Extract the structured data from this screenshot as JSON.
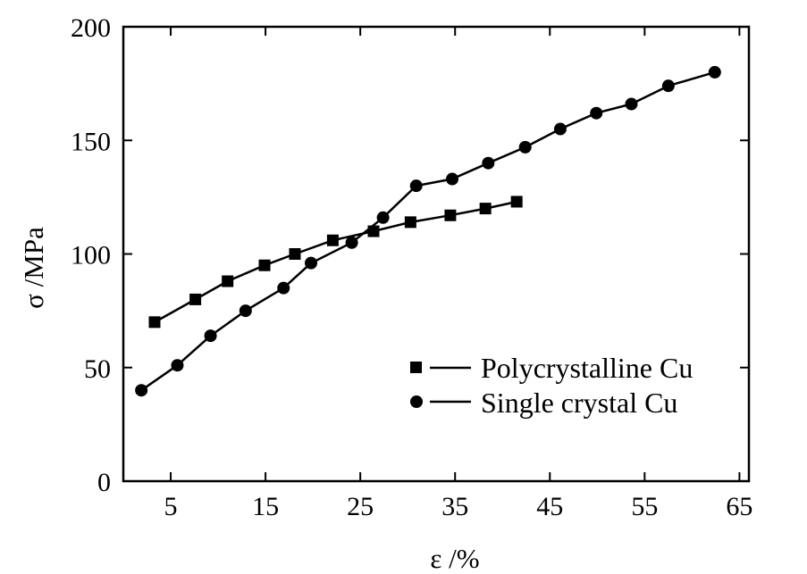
{
  "chart_data": {
    "type": "line",
    "title": "",
    "xlabel": "ε /%",
    "ylabel": "σ /MPa",
    "xlim": [
      0,
      66
    ],
    "ylim": [
      0,
      200
    ],
    "xticks": [
      5,
      15,
      25,
      35,
      45,
      55,
      65
    ],
    "yticks": [
      0,
      50,
      100,
      150,
      200
    ],
    "grid": false,
    "legend_position": "lower-right",
    "series": [
      {
        "name": "Polycrystalline Cu",
        "marker": "square",
        "color": "#000000",
        "points": [
          [
            3.3,
            70
          ],
          [
            7.6,
            80
          ],
          [
            11.0,
            88
          ],
          [
            14.9,
            95
          ],
          [
            18.1,
            100
          ],
          [
            22.1,
            106
          ],
          [
            26.4,
            110
          ],
          [
            30.3,
            114
          ],
          [
            34.5,
            117
          ],
          [
            38.2,
            120
          ],
          [
            41.5,
            123
          ]
        ]
      },
      {
        "name": "Single crystal Cu",
        "marker": "circle",
        "color": "#000000",
        "points": [
          [
            1.9,
            40
          ],
          [
            5.7,
            51
          ],
          [
            9.2,
            64
          ],
          [
            12.9,
            75
          ],
          [
            16.9,
            85
          ],
          [
            19.8,
            96
          ],
          [
            24.1,
            105
          ],
          [
            27.4,
            116
          ],
          [
            30.9,
            130
          ],
          [
            34.7,
            133
          ],
          [
            38.5,
            140
          ],
          [
            42.4,
            147
          ],
          [
            46.1,
            155
          ],
          [
            49.9,
            162
          ],
          [
            53.6,
            166
          ],
          [
            57.5,
            174
          ],
          [
            62.4,
            180
          ]
        ]
      }
    ]
  }
}
